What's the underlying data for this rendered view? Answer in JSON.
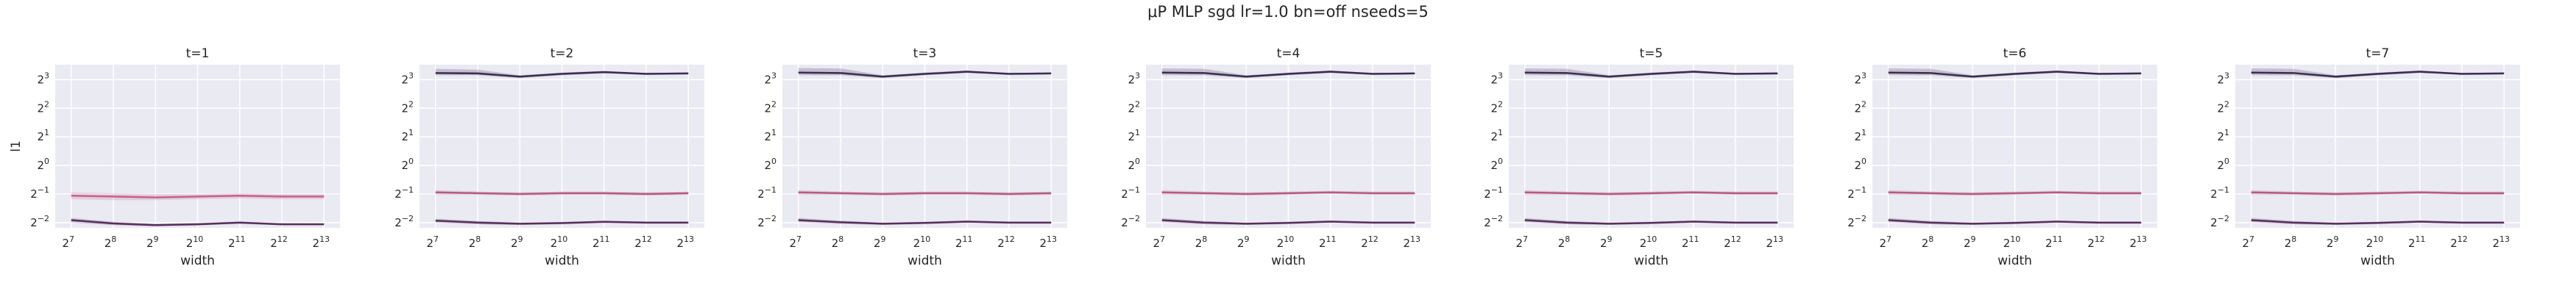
{
  "figure": {
    "title": "μP MLP sgd lr=1.0 bn=off nseeds=5"
  },
  "colors": {
    "background": "#eaeaf2",
    "grid": "#ffffff",
    "text": "#262626"
  },
  "chart_data": [
    {
      "type": "line",
      "title": "t=1",
      "xlabel": "width",
      "ylabel": "l1",
      "xscale": "log2",
      "yscale": "log2",
      "x_ticks": [
        128,
        256,
        512,
        1024,
        2048,
        4096,
        8192
      ],
      "x_tick_labels": [
        [
          "2",
          "7"
        ],
        [
          "2",
          "8"
        ],
        [
          "2",
          "9"
        ],
        [
          "2",
          "10"
        ],
        [
          "2",
          "11"
        ],
        [
          "2",
          "12"
        ],
        [
          "2",
          "13"
        ]
      ],
      "y_ticks": [
        0.25,
        0.5,
        1,
        2,
        4,
        8
      ],
      "y_tick_labels": [
        [
          "2",
          "−2"
        ],
        [
          "2",
          "−1"
        ],
        [
          "2",
          "0"
        ],
        [
          "2",
          "1"
        ],
        [
          "2",
          "2"
        ],
        [
          "2",
          "3"
        ]
      ],
      "grid": true,
      "series": [
        {
          "color": "#c4628e",
          "values": [
            0.48,
            0.47,
            0.46,
            0.47,
            0.48,
            0.47,
            0.47
          ],
          "band_low": [
            0.44,
            0.43,
            0.43,
            0.44,
            0.45,
            0.44,
            0.44
          ],
          "band_high": [
            0.52,
            0.51,
            0.5,
            0.5,
            0.51,
            0.5,
            0.5
          ]
        },
        {
          "color": "#582f5c",
          "values": [
            0.265,
            0.245,
            0.235,
            0.24,
            0.25,
            0.24,
            0.24
          ],
          "band_low": [
            0.25,
            0.235,
            0.228,
            0.233,
            0.243,
            0.234,
            0.235
          ],
          "band_high": [
            0.28,
            0.255,
            0.242,
            0.247,
            0.257,
            0.246,
            0.245
          ]
        }
      ]
    },
    {
      "type": "line",
      "title": "t=2",
      "xlabel": "width",
      "ylabel": "",
      "xscale": "log2",
      "yscale": "log2",
      "x_ticks": [
        128,
        256,
        512,
        1024,
        2048,
        4096,
        8192
      ],
      "x_tick_labels": [
        [
          "2",
          "7"
        ],
        [
          "2",
          "8"
        ],
        [
          "2",
          "9"
        ],
        [
          "2",
          "10"
        ],
        [
          "2",
          "11"
        ],
        [
          "2",
          "12"
        ],
        [
          "2",
          "13"
        ]
      ],
      "y_ticks": [
        0.25,
        0.5,
        1,
        2,
        4,
        8
      ],
      "y_tick_labels": [
        [
          "2",
          "−2"
        ],
        [
          "2",
          "−1"
        ],
        [
          "2",
          "0"
        ],
        [
          "2",
          "1"
        ],
        [
          "2",
          "2"
        ],
        [
          "2",
          "3"
        ]
      ],
      "grid": true,
      "series": [
        {
          "color": "#3d2a52",
          "values": [
            9.4,
            9.3,
            8.6,
            9.2,
            9.6,
            9.2,
            9.3
          ],
          "band_low": [
            8.9,
            8.9,
            8.3,
            8.9,
            9.3,
            9.0,
            9.1
          ],
          "band_high": [
            10.4,
            10.2,
            8.9,
            9.5,
            9.9,
            9.4,
            9.5
          ]
        },
        {
          "color": "#b55a85",
          "values": [
            0.52,
            0.51,
            0.5,
            0.51,
            0.51,
            0.5,
            0.51
          ],
          "band_low": [
            0.49,
            0.49,
            0.48,
            0.49,
            0.49,
            0.48,
            0.49
          ],
          "band_high": [
            0.55,
            0.53,
            0.52,
            0.53,
            0.53,
            0.52,
            0.53
          ]
        },
        {
          "color": "#582f5c",
          "values": [
            0.262,
            0.25,
            0.243,
            0.247,
            0.255,
            0.25,
            0.25
          ],
          "band_low": [
            0.25,
            0.24,
            0.235,
            0.24,
            0.248,
            0.244,
            0.244
          ],
          "band_high": [
            0.275,
            0.26,
            0.25,
            0.254,
            0.262,
            0.256,
            0.256
          ]
        }
      ]
    },
    {
      "type": "line",
      "title": "t=3",
      "xlabel": "width",
      "ylabel": "",
      "xscale": "log2",
      "yscale": "log2",
      "x_ticks": [
        128,
        256,
        512,
        1024,
        2048,
        4096,
        8192
      ],
      "x_tick_labels": [
        [
          "2",
          "7"
        ],
        [
          "2",
          "8"
        ],
        [
          "2",
          "9"
        ],
        [
          "2",
          "10"
        ],
        [
          "2",
          "11"
        ],
        [
          "2",
          "12"
        ],
        [
          "2",
          "13"
        ]
      ],
      "y_ticks": [
        0.25,
        0.5,
        1,
        2,
        4,
        8
      ],
      "y_tick_labels": [
        [
          "2",
          "−2"
        ],
        [
          "2",
          "−1"
        ],
        [
          "2",
          "0"
        ],
        [
          "2",
          "1"
        ],
        [
          "2",
          "2"
        ],
        [
          "2",
          "3"
        ]
      ],
      "grid": true,
      "series": [
        {
          "color": "#3d2a52",
          "values": [
            9.5,
            9.4,
            8.6,
            9.2,
            9.7,
            9.2,
            9.3
          ],
          "band_low": [
            8.9,
            8.9,
            8.3,
            8.9,
            9.4,
            9.0,
            9.1
          ],
          "band_high": [
            10.6,
            10.5,
            8.9,
            9.5,
            10.0,
            9.4,
            9.5
          ]
        },
        {
          "color": "#b55a85",
          "values": [
            0.52,
            0.51,
            0.5,
            0.51,
            0.51,
            0.5,
            0.51
          ],
          "band_low": [
            0.49,
            0.49,
            0.48,
            0.49,
            0.49,
            0.48,
            0.49
          ],
          "band_high": [
            0.55,
            0.53,
            0.52,
            0.53,
            0.53,
            0.52,
            0.53
          ]
        },
        {
          "color": "#582f5c",
          "values": [
            0.265,
            0.252,
            0.243,
            0.248,
            0.256,
            0.25,
            0.25
          ],
          "band_low": [
            0.252,
            0.242,
            0.236,
            0.241,
            0.249,
            0.244,
            0.244
          ],
          "band_high": [
            0.28,
            0.262,
            0.25,
            0.255,
            0.263,
            0.256,
            0.256
          ]
        }
      ]
    },
    {
      "type": "line",
      "title": "t=4",
      "xlabel": "width",
      "ylabel": "",
      "xscale": "log2",
      "yscale": "log2",
      "x_ticks": [
        128,
        256,
        512,
        1024,
        2048,
        4096,
        8192
      ],
      "x_tick_labels": [
        [
          "2",
          "7"
        ],
        [
          "2",
          "8"
        ],
        [
          "2",
          "9"
        ],
        [
          "2",
          "10"
        ],
        [
          "2",
          "11"
        ],
        [
          "2",
          "12"
        ],
        [
          "2",
          "13"
        ]
      ],
      "y_ticks": [
        0.25,
        0.5,
        1,
        2,
        4,
        8
      ],
      "y_tick_labels": [
        [
          "2",
          "−2"
        ],
        [
          "2",
          "−1"
        ],
        [
          "2",
          "0"
        ],
        [
          "2",
          "1"
        ],
        [
          "2",
          "2"
        ],
        [
          "2",
          "3"
        ]
      ],
      "grid": true,
      "series": [
        {
          "color": "#3d2a52",
          "values": [
            9.5,
            9.4,
            8.6,
            9.2,
            9.7,
            9.2,
            9.3
          ],
          "band_low": [
            8.9,
            8.9,
            8.3,
            8.9,
            9.4,
            9.0,
            9.1
          ],
          "band_high": [
            10.5,
            10.4,
            8.9,
            9.5,
            10.0,
            9.4,
            9.5
          ]
        },
        {
          "color": "#b55a85",
          "values": [
            0.52,
            0.51,
            0.5,
            0.51,
            0.52,
            0.51,
            0.51
          ],
          "band_low": [
            0.49,
            0.49,
            0.48,
            0.49,
            0.5,
            0.49,
            0.49
          ],
          "band_high": [
            0.55,
            0.53,
            0.52,
            0.53,
            0.54,
            0.53,
            0.53
          ]
        },
        {
          "color": "#582f5c",
          "values": [
            0.265,
            0.25,
            0.243,
            0.248,
            0.256,
            0.25,
            0.25
          ],
          "band_low": [
            0.252,
            0.24,
            0.236,
            0.241,
            0.249,
            0.244,
            0.244
          ],
          "band_high": [
            0.28,
            0.26,
            0.25,
            0.255,
            0.263,
            0.256,
            0.256
          ]
        }
      ]
    },
    {
      "type": "line",
      "title": "t=5",
      "xlabel": "width",
      "ylabel": "",
      "xscale": "log2",
      "yscale": "log2",
      "x_ticks": [
        128,
        256,
        512,
        1024,
        2048,
        4096,
        8192
      ],
      "x_tick_labels": [
        [
          "2",
          "7"
        ],
        [
          "2",
          "8"
        ],
        [
          "2",
          "9"
        ],
        [
          "2",
          "10"
        ],
        [
          "2",
          "11"
        ],
        [
          "2",
          "12"
        ],
        [
          "2",
          "13"
        ]
      ],
      "y_ticks": [
        0.25,
        0.5,
        1,
        2,
        4,
        8
      ],
      "y_tick_labels": [
        [
          "2",
          "−2"
        ],
        [
          "2",
          "−1"
        ],
        [
          "2",
          "0"
        ],
        [
          "2",
          "1"
        ],
        [
          "2",
          "2"
        ],
        [
          "2",
          "3"
        ]
      ],
      "grid": true,
      "series": [
        {
          "color": "#3d2a52",
          "values": [
            9.5,
            9.4,
            8.6,
            9.2,
            9.7,
            9.2,
            9.3
          ],
          "band_low": [
            8.9,
            8.9,
            8.3,
            8.9,
            9.4,
            9.0,
            9.1
          ],
          "band_high": [
            10.5,
            10.4,
            8.9,
            9.5,
            10.0,
            9.4,
            9.5
          ]
        },
        {
          "color": "#b55a85",
          "values": [
            0.52,
            0.51,
            0.5,
            0.51,
            0.52,
            0.51,
            0.51
          ],
          "band_low": [
            0.49,
            0.49,
            0.48,
            0.49,
            0.5,
            0.49,
            0.49
          ],
          "band_high": [
            0.55,
            0.53,
            0.52,
            0.53,
            0.54,
            0.53,
            0.53
          ]
        },
        {
          "color": "#582f5c",
          "values": [
            0.265,
            0.25,
            0.243,
            0.248,
            0.256,
            0.25,
            0.25
          ],
          "band_low": [
            0.252,
            0.24,
            0.236,
            0.241,
            0.249,
            0.244,
            0.244
          ],
          "band_high": [
            0.28,
            0.26,
            0.25,
            0.255,
            0.263,
            0.256,
            0.256
          ]
        }
      ]
    },
    {
      "type": "line",
      "title": "t=6",
      "xlabel": "width",
      "ylabel": "",
      "xscale": "log2",
      "yscale": "log2",
      "x_ticks": [
        128,
        256,
        512,
        1024,
        2048,
        4096,
        8192
      ],
      "x_tick_labels": [
        [
          "2",
          "7"
        ],
        [
          "2",
          "8"
        ],
        [
          "2",
          "9"
        ],
        [
          "2",
          "10"
        ],
        [
          "2",
          "11"
        ],
        [
          "2",
          "12"
        ],
        [
          "2",
          "13"
        ]
      ],
      "y_ticks": [
        0.25,
        0.5,
        1,
        2,
        4,
        8
      ],
      "y_tick_labels": [
        [
          "2",
          "−2"
        ],
        [
          "2",
          "−1"
        ],
        [
          "2",
          "0"
        ],
        [
          "2",
          "1"
        ],
        [
          "2",
          "2"
        ],
        [
          "2",
          "3"
        ]
      ],
      "grid": true,
      "series": [
        {
          "color": "#3d2a52",
          "values": [
            9.5,
            9.4,
            8.6,
            9.2,
            9.7,
            9.2,
            9.3
          ],
          "band_low": [
            8.9,
            8.9,
            8.3,
            8.9,
            9.4,
            9.0,
            9.1
          ],
          "band_high": [
            10.5,
            10.4,
            8.9,
            9.5,
            10.0,
            9.4,
            9.5
          ]
        },
        {
          "color": "#b55a85",
          "values": [
            0.52,
            0.51,
            0.5,
            0.51,
            0.52,
            0.51,
            0.51
          ],
          "band_low": [
            0.49,
            0.49,
            0.48,
            0.49,
            0.5,
            0.49,
            0.49
          ],
          "band_high": [
            0.55,
            0.53,
            0.52,
            0.53,
            0.54,
            0.53,
            0.53
          ]
        },
        {
          "color": "#582f5c",
          "values": [
            0.265,
            0.25,
            0.243,
            0.248,
            0.256,
            0.25,
            0.25
          ],
          "band_low": [
            0.252,
            0.24,
            0.236,
            0.241,
            0.249,
            0.244,
            0.244
          ],
          "band_high": [
            0.28,
            0.26,
            0.25,
            0.255,
            0.263,
            0.256,
            0.256
          ]
        }
      ]
    },
    {
      "type": "line",
      "title": "t=7",
      "xlabel": "width",
      "ylabel": "",
      "xscale": "log2",
      "yscale": "log2",
      "x_ticks": [
        128,
        256,
        512,
        1024,
        2048,
        4096,
        8192
      ],
      "x_tick_labels": [
        [
          "2",
          "7"
        ],
        [
          "2",
          "8"
        ],
        [
          "2",
          "9"
        ],
        [
          "2",
          "10"
        ],
        [
          "2",
          "11"
        ],
        [
          "2",
          "12"
        ],
        [
          "2",
          "13"
        ]
      ],
      "y_ticks": [
        0.25,
        0.5,
        1,
        2,
        4,
        8
      ],
      "y_tick_labels": [
        [
          "2",
          "−2"
        ],
        [
          "2",
          "−1"
        ],
        [
          "2",
          "0"
        ],
        [
          "2",
          "1"
        ],
        [
          "2",
          "2"
        ],
        [
          "2",
          "3"
        ]
      ],
      "grid": true,
      "series": [
        {
          "color": "#3d2a52",
          "values": [
            9.5,
            9.4,
            8.6,
            9.2,
            9.7,
            9.2,
            9.3
          ],
          "band_low": [
            8.9,
            8.9,
            8.3,
            8.9,
            9.4,
            9.0,
            9.1
          ],
          "band_high": [
            10.5,
            10.4,
            8.9,
            9.5,
            10.0,
            9.4,
            9.5
          ]
        },
        {
          "color": "#b55a85",
          "values": [
            0.52,
            0.51,
            0.5,
            0.51,
            0.52,
            0.51,
            0.51
          ],
          "band_low": [
            0.49,
            0.49,
            0.48,
            0.49,
            0.5,
            0.49,
            0.49
          ],
          "band_high": [
            0.55,
            0.53,
            0.52,
            0.53,
            0.54,
            0.53,
            0.53
          ]
        },
        {
          "color": "#582f5c",
          "values": [
            0.265,
            0.25,
            0.243,
            0.248,
            0.256,
            0.25,
            0.25
          ],
          "band_low": [
            0.252,
            0.24,
            0.236,
            0.241,
            0.249,
            0.244,
            0.244
          ],
          "band_high": [
            0.28,
            0.26,
            0.25,
            0.255,
            0.263,
            0.256,
            0.256
          ]
        }
      ]
    }
  ]
}
